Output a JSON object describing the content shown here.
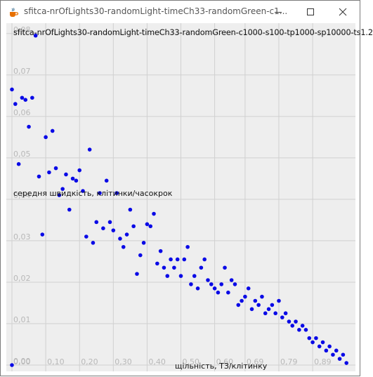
{
  "window": {
    "title": "sfitca-nrOfLights30-randomLight-timeCh33-randomGreen-c1...",
    "icon": "java-icon",
    "controls": [
      "minimize-icon",
      "maximize-icon",
      "close-icon"
    ]
  },
  "colors": {
    "point": "#0a0ae6",
    "grid": "#d0d0d0",
    "plot_bg": "#eeeeee",
    "tick_text": "#b8b8b8"
  },
  "chart_data": {
    "type": "scatter",
    "title": "sfitca-nrOfLights30-randomLight-timeCh33-randomGreen-c1000-s100-tp1000-sp10000-ts1.2",
    "xlabel": "щільність, ТЗ/клітинку",
    "ylabel": "середня швидкість, клітинки/часокрок",
    "xlim": [
      0.0,
      1.0
    ],
    "ylim": [
      0.0,
      0.0825
    ],
    "grid": true,
    "legend": "none",
    "x_ticks": [
      0.0,
      0.1,
      0.2,
      0.3,
      0.4,
      0.5,
      0.6,
      0.69,
      0.79,
      0.89
    ],
    "x_tick_labels": [
      "0,00",
      "0,10",
      "0,20",
      "0,30",
      "0,40",
      "0,50",
      "0,60",
      "0,69",
      "0,79",
      "0,89"
    ],
    "y_ticks": [
      0.0,
      0.01,
      0.02,
      0.03,
      0.04,
      0.05,
      0.06,
      0.07,
      0.08
    ],
    "y_tick_labels": [
      "0,00",
      "0,01",
      "0,02",
      "0,03",
      "0,04",
      "0,05",
      "0,06",
      "0,07",
      "0,08"
    ],
    "series": [
      {
        "name": "",
        "x": [
          0.0,
          0.0,
          0.01,
          0.02,
          0.03,
          0.04,
          0.05,
          0.06,
          0.07,
          0.08,
          0.09,
          0.1,
          0.11,
          0.12,
          0.13,
          0.14,
          0.15,
          0.16,
          0.17,
          0.18,
          0.19,
          0.2,
          0.21,
          0.22,
          0.23,
          0.24,
          0.25,
          0.26,
          0.27,
          0.28,
          0.29,
          0.3,
          0.31,
          0.32,
          0.33,
          0.34,
          0.35,
          0.36,
          0.37,
          0.38,
          0.39,
          0.4,
          0.41,
          0.42,
          0.43,
          0.44,
          0.45,
          0.46,
          0.47,
          0.48,
          0.49,
          0.5,
          0.51,
          0.52,
          0.53,
          0.54,
          0.55,
          0.56,
          0.57,
          0.58,
          0.59,
          0.6,
          0.61,
          0.62,
          0.63,
          0.64,
          0.65,
          0.66,
          0.67,
          0.68,
          0.69,
          0.7,
          0.71,
          0.72,
          0.73,
          0.74,
          0.75,
          0.76,
          0.77,
          0.78,
          0.79,
          0.8,
          0.81,
          0.82,
          0.83,
          0.84,
          0.85,
          0.86,
          0.87,
          0.88,
          0.89,
          0.9,
          0.91,
          0.92,
          0.93,
          0.94,
          0.95,
          0.96,
          0.97,
          0.98,
          0.99
        ],
        "y": [
          0.0,
          0.0665,
          0.063,
          0.0485,
          0.0645,
          0.064,
          0.0575,
          0.0645,
          0.0795,
          0.0455,
          0.0315,
          0.055,
          0.0465,
          0.0565,
          0.0475,
          0.041,
          0.0425,
          0.046,
          0.0375,
          0.045,
          0.0445,
          0.047,
          0.042,
          0.031,
          0.052,
          0.0295,
          0.0345,
          0.0415,
          0.033,
          0.0445,
          0.0345,
          0.0325,
          0.0415,
          0.0305,
          0.0285,
          0.0315,
          0.0375,
          0.0335,
          0.022,
          0.0265,
          0.0295,
          0.034,
          0.0335,
          0.0365,
          0.0245,
          0.0275,
          0.0235,
          0.0215,
          0.0255,
          0.0235,
          0.0255,
          0.0215,
          0.0255,
          0.0285,
          0.0195,
          0.0215,
          0.0185,
          0.0235,
          0.0255,
          0.0205,
          0.0195,
          0.0185,
          0.0175,
          0.0195,
          0.0235,
          0.0175,
          0.0205,
          0.0195,
          0.0145,
          0.0155,
          0.0165,
          0.0185,
          0.0135,
          0.0155,
          0.0145,
          0.0165,
          0.0125,
          0.0135,
          0.0145,
          0.0125,
          0.0155,
          0.0115,
          0.0125,
          0.0105,
          0.0095,
          0.0105,
          0.0085,
          0.0095,
          0.0085,
          0.0065,
          0.0055,
          0.0065,
          0.0045,
          0.0055,
          0.0035,
          0.0045,
          0.0025,
          0.0035,
          0.0015,
          0.0025,
          0.0005
        ]
      }
    ]
  }
}
